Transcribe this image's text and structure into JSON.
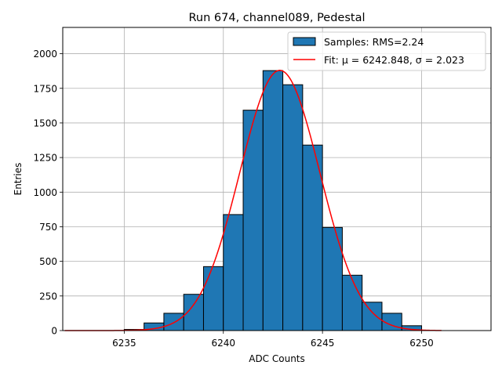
{
  "chart_data": {
    "type": "bar",
    "title": "Run 674, channel089, Pedestal",
    "xlabel": "ADC Counts",
    "ylabel": "Entries",
    "xlim": [
      6231.9,
      6253.5
    ],
    "ylim": [
      0,
      2190
    ],
    "xticks": [
      6235,
      6240,
      6245,
      6250
    ],
    "yticks": [
      0,
      250,
      500,
      750,
      1000,
      1250,
      1500,
      1750,
      2000
    ],
    "grid": true,
    "legend_position": "top-right",
    "bin_edges": [
      6231,
      6232,
      6233,
      6234,
      6235,
      6236,
      6237,
      6238,
      6239,
      6240,
      6241,
      6242,
      6243,
      6244,
      6245,
      6246,
      6247,
      6248,
      6249,
      6250,
      6251
    ],
    "counts": [
      0,
      0,
      0,
      0,
      8,
      55,
      125,
      262,
      462,
      838,
      1592,
      1878,
      1776,
      1340,
      745,
      400,
      205,
      125,
      35,
      0
    ],
    "fit": {
      "mu": 6242.848,
      "sigma": 2.023,
      "amplitude": 1880,
      "x_range": [
        6232,
        6251
      ]
    },
    "series": [
      {
        "name": "Samples: RMS=2.24",
        "kind": "histogram",
        "color": "#1f77b4"
      },
      {
        "name": "Fit: μ = 6242.848, σ = 2.023",
        "kind": "line",
        "color": "#ff0000"
      }
    ]
  }
}
